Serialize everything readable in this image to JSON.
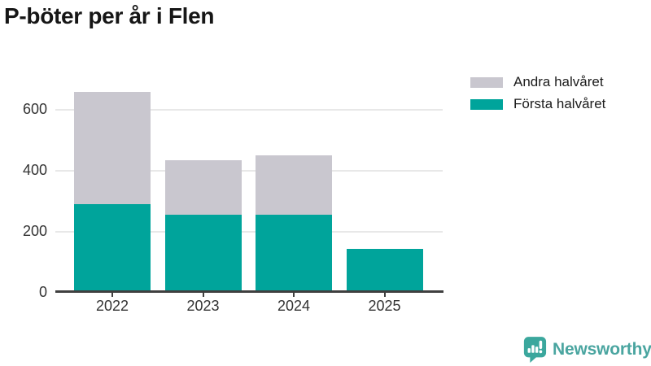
{
  "title": "P-böter per år i Flen",
  "legend": {
    "items": [
      {
        "label": "Andra halvåret",
        "color": "#c9c7cf"
      },
      {
        "label": "Första halvåret",
        "color": "#00a49b"
      }
    ]
  },
  "footer": {
    "brand": "Newsworthy"
  },
  "colors": {
    "first_half": "#00a49b",
    "second_half": "#c9c7cf",
    "axis_line": "#3f3f3f",
    "gridline": "#e8e8e8",
    "tick_text": "#333333",
    "title_text": "#161616",
    "logo_bubble": "#3ba79d",
    "logo_wordmark": "#4aa5a0"
  },
  "chart_data": {
    "type": "bar",
    "stacked": true,
    "title": "P-böter per år i Flen",
    "categories": [
      "2022",
      "2023",
      "2024",
      "2025"
    ],
    "series": [
      {
        "name": "Första halvåret",
        "color": "#00a49b",
        "values": [
          290,
          255,
          255,
          145
        ]
      },
      {
        "name": "Andra halvåret",
        "color": "#c9c7cf",
        "values": [
          370,
          180,
          195,
          0
        ]
      }
    ],
    "stack_totals": [
      660,
      435,
      450,
      145
    ],
    "xlabel": "",
    "ylabel": "",
    "y_ticks": [
      0,
      200,
      400,
      600
    ],
    "ylim": [
      0,
      690
    ],
    "grid": true,
    "legend_position": "top-right",
    "legend_order": [
      "Andra halvåret",
      "Första halvåret"
    ]
  }
}
